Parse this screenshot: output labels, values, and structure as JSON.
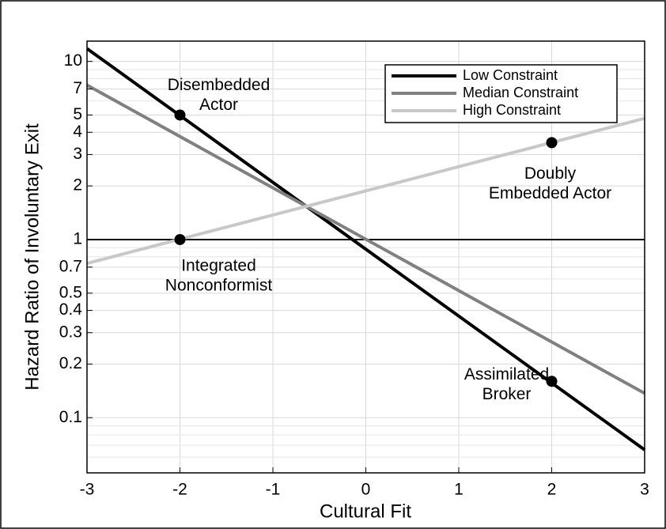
{
  "chart_data": {
    "type": "line",
    "x_label": "Cultural Fit",
    "y_label": "Hazard Ratio of Involuntary Exit",
    "x": [
      -3,
      3
    ],
    "series": [
      {
        "name": "Low Constraint",
        "color": "#000000",
        "values": [
          11.8,
          0.066
        ]
      },
      {
        "name": "Median Constraint",
        "color": "#808080",
        "values": [
          7.36,
          0.137
        ]
      },
      {
        "name": "High Constraint",
        "color": "#c8c8c8",
        "values": [
          0.735,
          4.79
        ]
      }
    ],
    "points": [
      {
        "x": -2,
        "y": 5,
        "label": [
          "Disembedded",
          "Actor"
        ]
      },
      {
        "x": -2,
        "y": 1,
        "label": [
          "Integrated",
          "Nonconformist"
        ]
      },
      {
        "x": 2,
        "y": 3.5,
        "label": [
          "Doubly",
          "Embedded Actor"
        ]
      },
      {
        "x": 2,
        "y": 0.16,
        "label": [
          "Assimilated",
          "Broker"
        ]
      }
    ],
    "hline": 1,
    "xlim": [
      -3,
      3
    ],
    "xticks": [
      -3,
      -2,
      -1,
      0,
      1,
      2,
      3
    ],
    "ylim": [
      0.049,
      13
    ],
    "yticks": [
      0.1,
      0.2,
      0.3,
      0.4,
      0.5,
      0.7,
      1,
      2,
      3,
      4,
      5,
      7,
      10
    ],
    "minor_yticks": [
      0.06,
      0.07,
      0.08,
      0.09,
      0.6,
      0.8,
      0.9,
      6,
      8,
      9
    ],
    "y_scale": "log",
    "grid": true,
    "legend": "upper right"
  }
}
